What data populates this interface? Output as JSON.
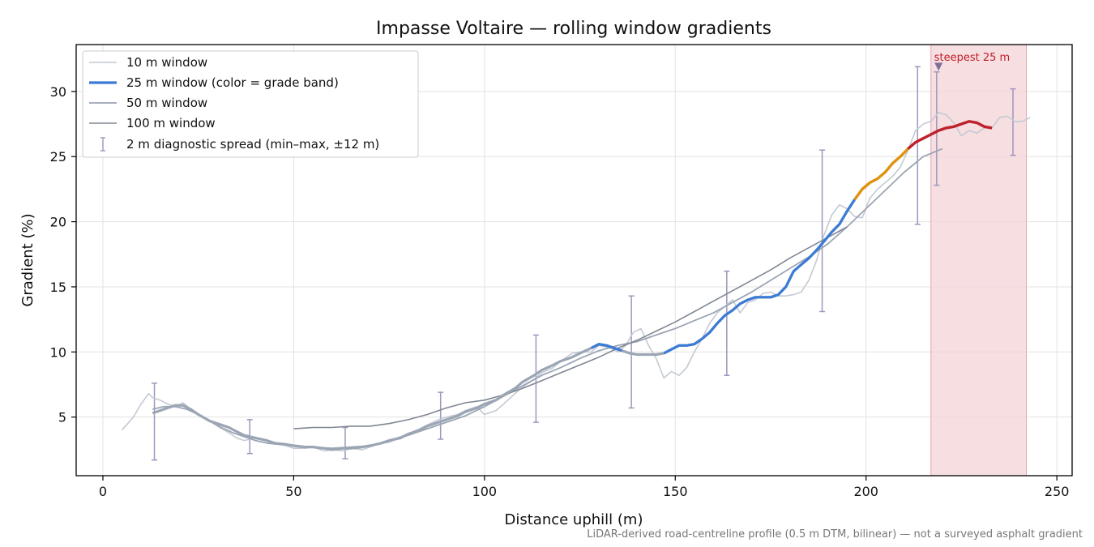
{
  "chart_data": {
    "type": "line",
    "title": "Impasse Voltaire — rolling window gradients",
    "xlabel": "Distance uphill (m)",
    "ylabel": "Gradient (%)",
    "xlim": [
      -7,
      254
    ],
    "ylim": [
      0.5,
      33.6
    ],
    "xticks": [
      0,
      50,
      100,
      150,
      200,
      250
    ],
    "yticks": [
      5,
      10,
      15,
      20,
      25,
      30
    ],
    "grid": true,
    "legend_position": "top-left",
    "footnote": "LiDAR-derived road-centreline profile (0.5 m DTM, bilinear) — not a surveyed asphalt gradient",
    "colors": {
      "w10": "#c4cad3",
      "w50": "#9ba5b4",
      "w100": "#808794",
      "blue": "#3a7bd5",
      "orange": "#e0930f",
      "red": "#c0202b",
      "errorbar": "#9e96bd",
      "highlight": "#f3d3d7"
    },
    "highlight": {
      "x_range": [
        217,
        242
      ],
      "label": "steepest 25 m",
      "marker": {
        "x": 219,
        "y": 31.9
      }
    },
    "series": [
      {
        "name": "10 m window",
        "x": [
          5,
          8,
          10,
          12,
          13,
          15,
          17,
          19,
          21,
          23,
          25,
          28,
          30,
          33,
          35,
          37,
          40,
          43,
          45,
          48,
          50,
          53,
          55,
          58,
          60,
          63,
          65,
          68,
          70,
          73,
          75,
          78,
          80,
          83,
          85,
          88,
          90,
          93,
          95,
          98,
          100,
          103,
          105,
          108,
          110,
          113,
          115,
          118,
          120,
          123,
          125,
          128,
          130,
          133,
          135,
          137,
          139,
          141,
          143,
          145,
          147,
          149,
          151,
          153,
          155,
          157,
          159,
          161,
          163,
          165,
          167,
          169,
          171,
          173,
          175,
          177,
          179,
          181,
          183,
          185,
          187,
          189,
          191,
          193,
          195,
          197,
          199,
          201,
          203,
          205,
          207,
          209,
          211,
          213,
          215,
          217,
          219,
          221,
          223,
          225,
          227,
          229,
          231,
          233,
          235,
          237,
          239,
          241,
          243
        ],
        "y": [
          4.0,
          5.0,
          6.0,
          6.8,
          6.5,
          6.3,
          6.0,
          5.8,
          6.1,
          5.6,
          5.2,
          4.7,
          4.3,
          3.8,
          3.4,
          3.2,
          3.4,
          3.2,
          3.0,
          2.8,
          2.6,
          2.6,
          2.7,
          2.4,
          2.5,
          2.4,
          2.6,
          2.5,
          2.7,
          3.0,
          3.2,
          3.5,
          3.7,
          4.1,
          4.4,
          4.8,
          5.0,
          5.2,
          5.5,
          5.8,
          5.2,
          5.5,
          6.0,
          6.8,
          7.3,
          7.9,
          8.4,
          8.8,
          9.3,
          9.9,
          10.0,
          10.0,
          10.5,
          10.3,
          10.0,
          10.5,
          11.5,
          11.8,
          10.5,
          9.5,
          8.0,
          8.5,
          8.2,
          8.8,
          10.0,
          11.0,
          12.2,
          13.0,
          13.5,
          14.0,
          13.0,
          13.8,
          14.0,
          14.5,
          14.6,
          14.3,
          14.3,
          14.4,
          14.6,
          15.5,
          17.0,
          19.0,
          20.5,
          21.3,
          21.0,
          20.4,
          20.3,
          21.8,
          22.5,
          23.0,
          23.5,
          24.2,
          25.5,
          27.0,
          27.5,
          27.7,
          28.4,
          28.2,
          27.6,
          26.6,
          27.0,
          26.8,
          27.2,
          27.2,
          28.0,
          28.1,
          27.7,
          27.7,
          28.0
        ]
      },
      {
        "name": "25 m window (color = grade band)",
        "x": [
          13,
          15,
          17,
          19,
          21,
          23,
          25,
          28,
          30,
          33,
          35,
          37,
          40,
          43,
          45,
          48,
          50,
          53,
          55,
          58,
          60,
          63,
          65,
          68,
          70,
          73,
          75,
          78,
          80,
          83,
          85,
          88,
          90,
          93,
          95,
          98,
          100,
          103,
          105,
          108,
          110,
          113,
          115,
          118,
          120,
          123,
          125,
          128,
          130,
          132,
          134,
          136,
          138,
          140,
          142,
          145,
          147,
          149,
          151,
          153,
          155,
          157,
          159,
          161,
          163,
          165,
          167,
          169,
          171,
          173,
          175,
          177,
          179,
          181,
          183,
          185,
          187,
          189,
          191,
          193,
          195,
          197,
          199,
          201,
          203,
          205,
          207,
          209,
          211,
          213,
          215,
          217,
          219,
          221,
          223,
          225,
          227,
          229,
          231,
          233
        ],
        "y": [
          5.3,
          5.5,
          5.7,
          5.9,
          5.9,
          5.6,
          5.2,
          4.7,
          4.5,
          4.2,
          3.9,
          3.6,
          3.4,
          3.2,
          3.0,
          2.9,
          2.8,
          2.7,
          2.7,
          2.6,
          2.5,
          2.6,
          2.6,
          2.7,
          2.8,
          3.0,
          3.2,
          3.4,
          3.7,
          4.0,
          4.3,
          4.6,
          4.8,
          5.1,
          5.4,
          5.7,
          6.0,
          6.3,
          6.7,
          7.2,
          7.7,
          8.2,
          8.6,
          9.0,
          9.3,
          9.6,
          9.9,
          10.3,
          10.6,
          10.5,
          10.3,
          10.1,
          9.9,
          9.8,
          9.8,
          9.8,
          9.9,
          10.2,
          10.5,
          10.5,
          10.6,
          11.0,
          11.5,
          12.2,
          12.8,
          13.2,
          13.7,
          14.0,
          14.2,
          14.2,
          14.2,
          14.4,
          15.0,
          16.2,
          16.7,
          17.2,
          17.8,
          18.5,
          19.2,
          19.8,
          20.8,
          21.7,
          22.5,
          23.0,
          23.3,
          23.8,
          24.5,
          25.0,
          25.6,
          26.1,
          26.4,
          26.7,
          27.0,
          27.2,
          27.3,
          27.5,
          27.7,
          27.6,
          27.3,
          27.2
        ],
        "bands": [
          {
            "color": "blue",
            "x_from": 13,
            "x_to": 197
          },
          {
            "color": "orange",
            "x_from": 197,
            "x_to": 211
          },
          {
            "color": "red",
            "x_from": 211,
            "x_to": 233
          }
        ]
      },
      {
        "name": "50 m window",
        "x": [
          13,
          16,
          19,
          22,
          25,
          28,
          31,
          34,
          37,
          40,
          43,
          46,
          50,
          55,
          60,
          65,
          70,
          75,
          80,
          85,
          90,
          95,
          100,
          105,
          110,
          115,
          120,
          125,
          130,
          135,
          140,
          145,
          150,
          155,
          160,
          165,
          170,
          175,
          180,
          185,
          190,
          195,
          200,
          205,
          210,
          215,
          220
        ],
        "y": [
          5.6,
          5.8,
          5.8,
          5.6,
          5.2,
          4.7,
          4.2,
          3.8,
          3.5,
          3.2,
          3.0,
          2.9,
          2.8,
          2.7,
          2.6,
          2.7,
          2.8,
          3.1,
          3.6,
          4.1,
          4.6,
          5.1,
          5.8,
          6.6,
          7.4,
          8.2,
          8.8,
          9.5,
          10.1,
          10.5,
          10.8,
          11.3,
          11.8,
          12.4,
          13.0,
          13.8,
          14.6,
          15.5,
          16.4,
          17.3,
          18.3,
          19.6,
          21.0,
          22.4,
          23.8,
          25.0,
          25.6
        ]
      },
      {
        "name": "100 m window",
        "x": [
          50,
          55,
          60,
          65,
          70,
          75,
          80,
          85,
          90,
          95,
          100,
          105,
          110,
          115,
          120,
          125,
          130,
          135,
          140,
          145,
          150,
          155,
          160,
          165,
          170,
          175,
          180,
          185,
          190,
          195
        ],
        "y": [
          4.1,
          4.2,
          4.2,
          4.3,
          4.3,
          4.5,
          4.8,
          5.2,
          5.7,
          6.1,
          6.3,
          6.7,
          7.2,
          7.8,
          8.4,
          9.0,
          9.6,
          10.3,
          10.9,
          11.6,
          12.3,
          13.1,
          13.9,
          14.7,
          15.5,
          16.3,
          17.2,
          18.0,
          18.8,
          19.6
        ]
      }
    ],
    "error_bars": {
      "name": "2 m diagnostic spread (min–max, ±12 m)",
      "points": [
        {
          "x": 13.5,
          "y_min": 1.7,
          "y_max": 7.6
        },
        {
          "x": 38.5,
          "y_min": 2.2,
          "y_max": 4.8
        },
        {
          "x": 63.5,
          "y_min": 1.8,
          "y_max": 4.2
        },
        {
          "x": 88.5,
          "y_min": 3.3,
          "y_max": 6.9
        },
        {
          "x": 113.5,
          "y_min": 4.6,
          "y_max": 11.3
        },
        {
          "x": 138.5,
          "y_min": 5.7,
          "y_max": 14.3
        },
        {
          "x": 163.5,
          "y_min": 8.2,
          "y_max": 16.2
        },
        {
          "x": 188.5,
          "y_min": 13.1,
          "y_max": 25.5
        },
        {
          "x": 213.5,
          "y_min": 19.8,
          "y_max": 31.9
        },
        {
          "x": 218.5,
          "y_min": 22.8,
          "y_max": 31.5
        },
        {
          "x": 238.5,
          "y_min": 25.1,
          "y_max": 30.2
        }
      ]
    }
  }
}
